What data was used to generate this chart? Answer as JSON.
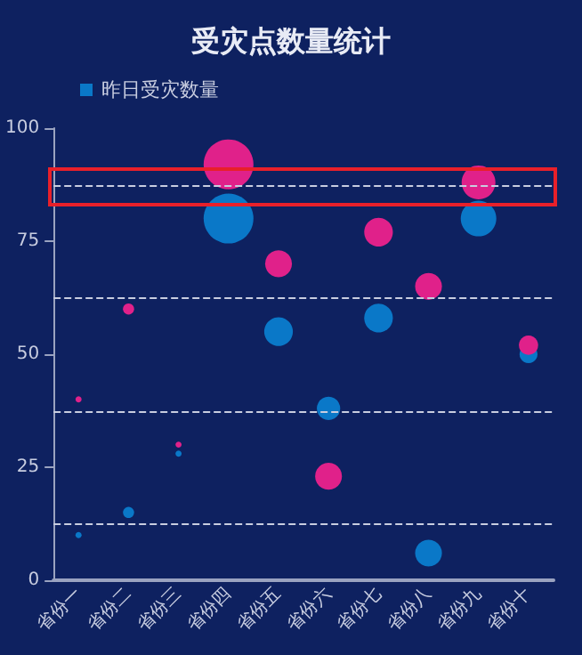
{
  "chart_data": {
    "type": "bubble",
    "title": "受灾点数量统计",
    "categories": [
      "省份一",
      "省份二",
      "省份三",
      "省份四",
      "省份五",
      "省份六",
      "省份七",
      "省份八",
      "省份九",
      "省份十"
    ],
    "series": [
      {
        "name": "昨日受灾数量",
        "color": "#0a78c8",
        "values": [
          10,
          15,
          28,
          80,
          55,
          38,
          58,
          6,
          80,
          50
        ],
        "sizes": [
          0.015,
          0.05,
          0.015,
          1,
          0.33,
          0.22,
          0.33,
          0.29,
          0.51,
          0.13
        ]
      },
      {
        "color": "#e0218a",
        "values": [
          40,
          60,
          30,
          92,
          70,
          23,
          77,
          65,
          88,
          52
        ],
        "sizes": [
          0.015,
          0.05,
          0.015,
          1,
          0.29,
          0.29,
          0.33,
          0.29,
          0.46,
          0.15
        ]
      }
    ],
    "ylim": [
      0,
      100
    ],
    "yticks": [
      0,
      25,
      50,
      75,
      100
    ],
    "ref_lines": [
      {
        "axis": "y",
        "value": 12.5,
        "color": "#c8cde0",
        "line_style": "dashed"
      },
      {
        "axis": "y",
        "value": 37.5,
        "color": "#c8cde0",
        "line_style": "dashed"
      },
      {
        "axis": "y",
        "value": 62.5,
        "color": "#c8cde0",
        "line_style": "dashed"
      },
      {
        "axis": "y",
        "value": 87.5,
        "color": "#c8cde0",
        "line_style": "dashed"
      }
    ],
    "grid": false,
    "legend": "top left",
    "marker": "circle"
  }
}
